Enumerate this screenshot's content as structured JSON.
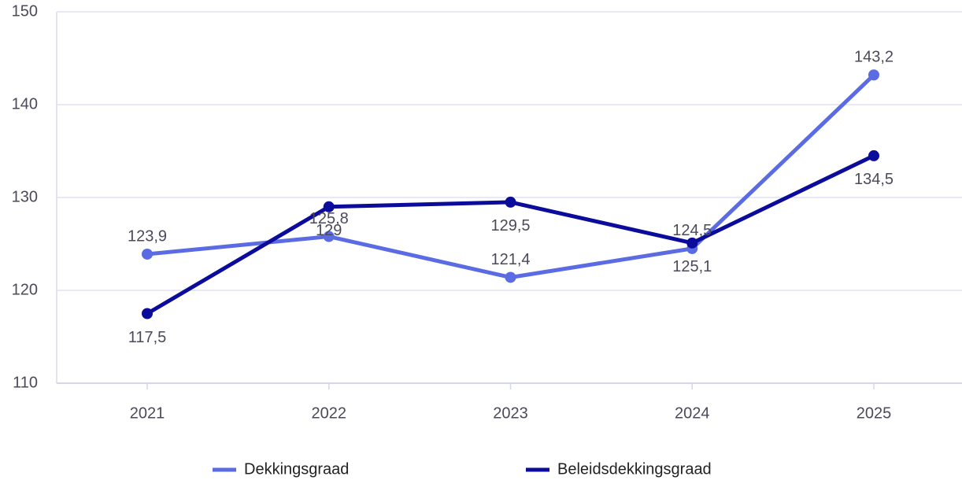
{
  "chart_data": {
    "type": "line",
    "categories": [
      "2021",
      "2022",
      "2023",
      "2024",
      "2025"
    ],
    "series": [
      {
        "name": "Dekkingsgraad",
        "color": "#5b6be3",
        "values": [
          123.9,
          125.8,
          121.4,
          124.5,
          143.2
        ],
        "value_labels": [
          "123,9",
          "125,8",
          "121,4",
          "124,5",
          "143,2"
        ]
      },
      {
        "name": "Beleidsdekkingsgraad",
        "color": "#0b0b9c",
        "values": [
          117.5,
          129,
          129.5,
          125.1,
          134.5
        ],
        "value_labels": [
          "117,5",
          "129",
          "129,5",
          "125,1",
          "134,5"
        ]
      }
    ],
    "ylim": [
      110,
      150
    ],
    "yticks": [
      110,
      120,
      130,
      140,
      150
    ],
    "grid": true
  }
}
